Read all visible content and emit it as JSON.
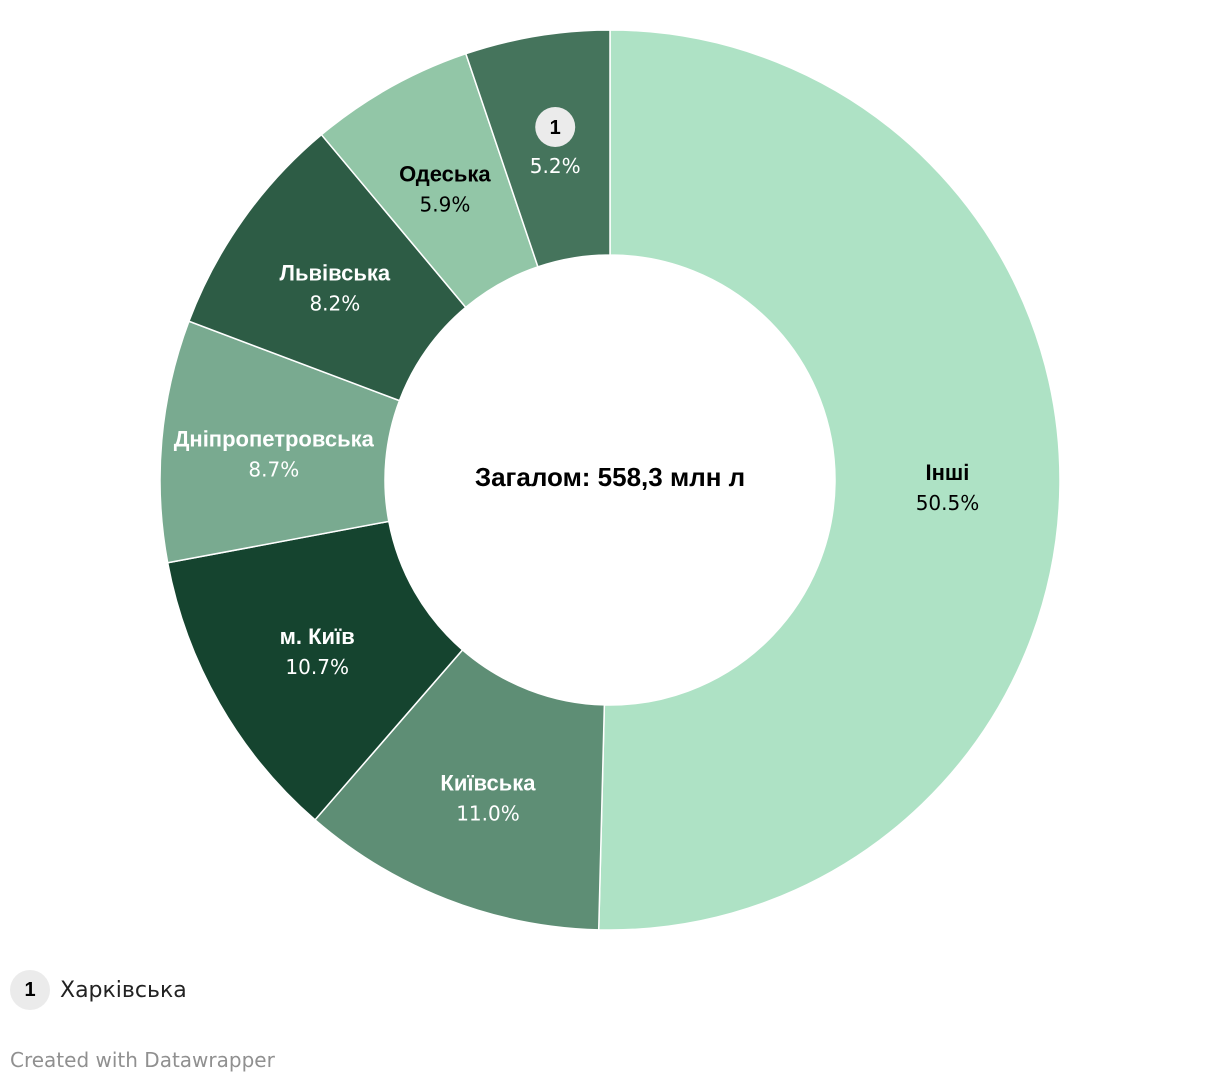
{
  "chart_data": {
    "type": "pie",
    "variant": "donut",
    "center_label": "Загалом: 558,3 млн л",
    "slices": [
      {
        "label": "Інші",
        "value": 50.5,
        "value_label": "50.5%",
        "color": "#aee2c5",
        "text_color": "#000000"
      },
      {
        "label": "Київська",
        "value": 11.0,
        "value_label": "11.0%",
        "color": "#5e8e75",
        "text_color": "#ffffff"
      },
      {
        "label": "м. Київ",
        "value": 10.7,
        "value_label": "10.7%",
        "color": "#15442f",
        "text_color": "#ffffff"
      },
      {
        "label": "Дніпропетровська",
        "value": 8.7,
        "value_label": "8.7%",
        "color": "#79aa90",
        "text_color": "#ffffff"
      },
      {
        "label": "Львівська",
        "value": 8.2,
        "value_label": "8.2%",
        "color": "#2d5c45",
        "text_color": "#ffffff"
      },
      {
        "label": "Одеська",
        "value": 5.9,
        "value_label": "5.9%",
        "color": "#92c6a7",
        "text_color": "#000000"
      },
      {
        "label": "1",
        "value": 5.2,
        "value_label": "5.2%",
        "color": "#45745c",
        "text_color": "#ffffff",
        "footnote_marker": true
      }
    ]
  },
  "footnote": {
    "marker": "1",
    "text": "Харківська"
  },
  "credit": "Created with Datawrapper"
}
